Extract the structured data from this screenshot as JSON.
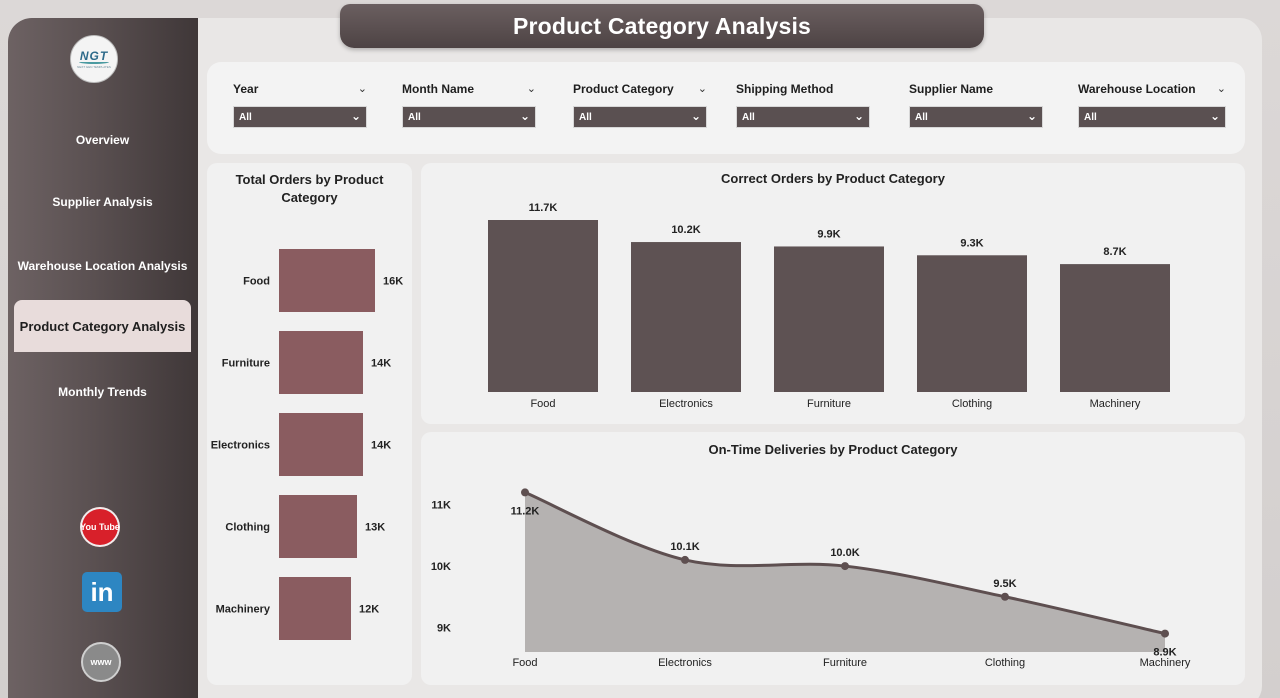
{
  "title": "Product Category Analysis",
  "logo": {
    "text": "NGT",
    "subtext": "NEXT GEN TEMPLATES"
  },
  "sidebar": {
    "items": [
      {
        "label": "Overview",
        "active": false
      },
      {
        "label": "Supplier Analysis",
        "active": false
      },
      {
        "label": "Warehouse Location Analysis",
        "active": false
      },
      {
        "label": "Product Category Analysis",
        "active": true
      },
      {
        "label": "Monthly Trends",
        "active": false
      }
    ],
    "social": [
      {
        "name": "youtube-icon",
        "text": "You Tube"
      },
      {
        "name": "linkedin-icon",
        "text": "in"
      },
      {
        "name": "website-icon",
        "text": "www"
      }
    ]
  },
  "filters": [
    {
      "label": "Year",
      "value": "All"
    },
    {
      "label": "Month Name",
      "value": "All"
    },
    {
      "label": "Product Category",
      "value": "All"
    },
    {
      "label": "Shipping Method",
      "value": "All"
    },
    {
      "label": "Supplier Name",
      "value": "All"
    },
    {
      "label": "Warehouse Location",
      "value": "All"
    }
  ],
  "colors": {
    "bar_mauve": "#8a5c60",
    "bar_dark": "#5e5253",
    "area_fill": "#b5b2b1",
    "line": "#5e4f50"
  },
  "chart_data": [
    {
      "type": "bar",
      "orientation": "horizontal",
      "title": "Total Orders by Product Category",
      "categories": [
        "Food",
        "Furniture",
        "Electronics",
        "Clothing",
        "Machinery"
      ],
      "values": [
        16000,
        14000,
        14000,
        13000,
        12000
      ],
      "data_labels": [
        "16K",
        "14K",
        "14K",
        "13K",
        "12K"
      ]
    },
    {
      "type": "bar",
      "title": "Correct Orders by Product Category",
      "categories": [
        "Food",
        "Electronics",
        "Furniture",
        "Clothing",
        "Machinery"
      ],
      "values": [
        11700,
        10200,
        9900,
        9300,
        8700
      ],
      "data_labels": [
        "11.7K",
        "10.2K",
        "9.9K",
        "9.3K",
        "8.7K"
      ]
    },
    {
      "type": "area",
      "title": "On-Time Deliveries by Product Category",
      "categories": [
        "Food",
        "Electronics",
        "Furniture",
        "Clothing",
        "Machinery"
      ],
      "values": [
        11200,
        10100,
        10000,
        9500,
        8900
      ],
      "data_labels": [
        "11.2K",
        "10.1K",
        "10.0K",
        "9.5K",
        "8.9K"
      ],
      "y_ticks": [
        "11K",
        "10K",
        "9K"
      ],
      "y_tick_values": [
        11000,
        10000,
        9000
      ],
      "ylim": [
        8600,
        11500
      ]
    }
  ]
}
